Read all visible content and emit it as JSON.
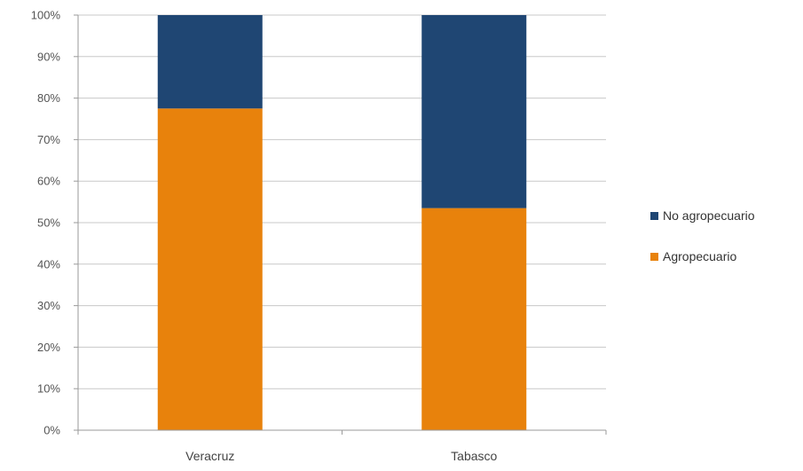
{
  "chart_data": {
    "type": "bar",
    "stacked": true,
    "percent_axis": true,
    "categories": [
      "Veracruz",
      "Tabasco"
    ],
    "series": [
      {
        "name": "Agropecuario",
        "values": [
          77.5,
          53.5
        ],
        "color": "#E8820C"
      },
      {
        "name": "No agropecuario",
        "values": [
          22.5,
          46.5
        ],
        "color": "#1F4673"
      }
    ],
    "y_ticks": [
      "0%",
      "10%",
      "20%",
      "30%",
      "40%",
      "50%",
      "60%",
      "70%",
      "80%",
      "90%",
      "100%"
    ],
    "ylim": [
      0,
      100
    ],
    "grid": true,
    "legend_position": "right",
    "legend": [
      "No agropecuario",
      "Agropecuario"
    ]
  }
}
